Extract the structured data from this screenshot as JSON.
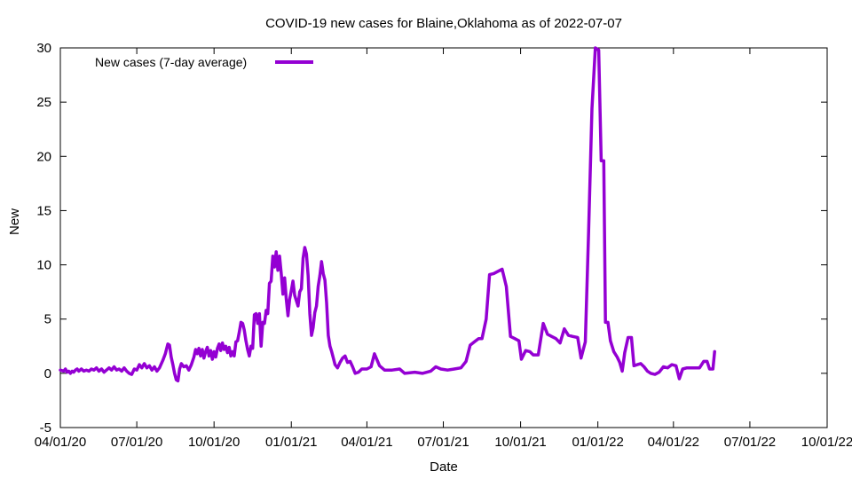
{
  "chart_data": {
    "type": "line",
    "title": "COVID-19 new cases for Blaine,Oklahoma as of 2022-07-07",
    "xlabel": "Date",
    "ylabel": "New",
    "ylim": [
      -5,
      30
    ],
    "yticks": [
      -5,
      0,
      5,
      10,
      15,
      20,
      25,
      30
    ],
    "xlim": [
      "2020-04-01",
      "2022-10-01"
    ],
    "xticks": [
      "2020-04-01",
      "2020-07-01",
      "2020-10-01",
      "2021-01-01",
      "2021-04-01",
      "2021-07-01",
      "2021-10-01",
      "2022-01-01",
      "2022-04-01",
      "2022-07-01",
      "2022-10-01"
    ],
    "xticklabels": [
      "04/01/20",
      "07/01/20",
      "10/01/20",
      "01/01/21",
      "04/01/21",
      "07/01/21",
      "10/01/21",
      "01/01/22",
      "04/01/22",
      "07/01/22",
      "10/01/22"
    ],
    "grid": false,
    "legend_position": "top-left",
    "series": [
      {
        "name": "New cases (7-day average)",
        "color": "#9400d3",
        "points": [
          [
            "2020-04-01",
            0.3
          ],
          [
            "2020-04-05",
            0.2
          ],
          [
            "2020-04-07",
            0.4
          ],
          [
            "2020-04-09",
            0.1
          ],
          [
            "2020-04-11",
            0.2
          ],
          [
            "2020-04-13",
            0.0
          ],
          [
            "2020-04-15",
            0.2
          ],
          [
            "2020-04-17",
            0.1
          ],
          [
            "2020-04-19",
            0.3
          ],
          [
            "2020-04-21",
            0.4
          ],
          [
            "2020-04-23",
            0.2
          ],
          [
            "2020-04-26",
            0.4
          ],
          [
            "2020-04-29",
            0.2
          ],
          [
            "2020-05-02",
            0.3
          ],
          [
            "2020-05-05",
            0.2
          ],
          [
            "2020-05-08",
            0.4
          ],
          [
            "2020-05-11",
            0.3
          ],
          [
            "2020-05-14",
            0.5
          ],
          [
            "2020-05-17",
            0.2
          ],
          [
            "2020-05-20",
            0.4
          ],
          [
            "2020-05-23",
            0.1
          ],
          [
            "2020-05-26",
            0.3
          ],
          [
            "2020-05-29",
            0.5
          ],
          [
            "2020-06-01",
            0.3
          ],
          [
            "2020-06-04",
            0.6
          ],
          [
            "2020-06-07",
            0.3
          ],
          [
            "2020-06-10",
            0.4
          ],
          [
            "2020-06-13",
            0.2
          ],
          [
            "2020-06-16",
            0.5
          ],
          [
            "2020-06-19",
            0.2
          ],
          [
            "2020-06-22",
            0.0
          ],
          [
            "2020-06-25",
            -0.1
          ],
          [
            "2020-06-28",
            0.4
          ],
          [
            "2020-07-01",
            0.3
          ],
          [
            "2020-07-04",
            0.8
          ],
          [
            "2020-07-07",
            0.5
          ],
          [
            "2020-07-10",
            0.9
          ],
          [
            "2020-07-13",
            0.5
          ],
          [
            "2020-07-16",
            0.7
          ],
          [
            "2020-07-19",
            0.3
          ],
          [
            "2020-07-22",
            0.6
          ],
          [
            "2020-07-25",
            0.2
          ],
          [
            "2020-07-28",
            0.5
          ],
          [
            "2020-08-01",
            1.2
          ],
          [
            "2020-08-04",
            1.8
          ],
          [
            "2020-08-07",
            2.7
          ],
          [
            "2020-08-09",
            2.6
          ],
          [
            "2020-08-11",
            1.5
          ],
          [
            "2020-08-13",
            0.8
          ],
          [
            "2020-08-15",
            0.0
          ],
          [
            "2020-08-17",
            -0.6
          ],
          [
            "2020-08-19",
            -0.7
          ],
          [
            "2020-08-21",
            0.4
          ],
          [
            "2020-08-23",
            0.9
          ],
          [
            "2020-08-26",
            0.6
          ],
          [
            "2020-08-29",
            0.7
          ],
          [
            "2020-09-01",
            0.3
          ],
          [
            "2020-09-04",
            0.8
          ],
          [
            "2020-09-07",
            1.5
          ],
          [
            "2020-09-09",
            2.2
          ],
          [
            "2020-09-11",
            1.8
          ],
          [
            "2020-09-13",
            2.3
          ],
          [
            "2020-09-15",
            1.6
          ],
          [
            "2020-09-17",
            2.2
          ],
          [
            "2020-09-19",
            1.4
          ],
          [
            "2020-09-21",
            2.0
          ],
          [
            "2020-09-23",
            2.4
          ],
          [
            "2020-09-25",
            1.6
          ],
          [
            "2020-09-27",
            2.1
          ],
          [
            "2020-09-29",
            1.3
          ],
          [
            "2020-10-01",
            2.0
          ],
          [
            "2020-10-03",
            1.5
          ],
          [
            "2020-10-05",
            2.3
          ],
          [
            "2020-10-07",
            2.7
          ],
          [
            "2020-10-09",
            2.1
          ],
          [
            "2020-10-11",
            2.8
          ],
          [
            "2020-10-13",
            2.2
          ],
          [
            "2020-10-15",
            2.5
          ],
          [
            "2020-10-17",
            1.9
          ],
          [
            "2020-10-19",
            2.4
          ],
          [
            "2020-10-21",
            1.6
          ],
          [
            "2020-10-23",
            2.0
          ],
          [
            "2020-10-25",
            1.6
          ],
          [
            "2020-10-27",
            2.9
          ],
          [
            "2020-10-29",
            3.0
          ],
          [
            "2020-10-31",
            3.8
          ],
          [
            "2020-11-02",
            4.7
          ],
          [
            "2020-11-04",
            4.6
          ],
          [
            "2020-11-06",
            4.0
          ],
          [
            "2020-11-08",
            3.0
          ],
          [
            "2020-11-10",
            2.2
          ],
          [
            "2020-11-12",
            1.6
          ],
          [
            "2020-11-14",
            2.5
          ],
          [
            "2020-11-16",
            2.3
          ],
          [
            "2020-11-18",
            5.4
          ],
          [
            "2020-11-20",
            5.5
          ],
          [
            "2020-11-22",
            4.6
          ],
          [
            "2020-11-24",
            5.5
          ],
          [
            "2020-11-26",
            2.5
          ],
          [
            "2020-11-28",
            4.7
          ],
          [
            "2020-11-30",
            4.6
          ],
          [
            "2020-12-02",
            5.8
          ],
          [
            "2020-12-04",
            5.5
          ],
          [
            "2020-12-06",
            8.3
          ],
          [
            "2020-12-08",
            8.5
          ],
          [
            "2020-12-10",
            10.8
          ],
          [
            "2020-12-12",
            9.8
          ],
          [
            "2020-12-14",
            11.2
          ],
          [
            "2020-12-16",
            9.5
          ],
          [
            "2020-12-18",
            10.8
          ],
          [
            "2020-12-20",
            9.2
          ],
          [
            "2020-12-22",
            7.3
          ],
          [
            "2020-12-24",
            8.8
          ],
          [
            "2020-12-26",
            6.8
          ],
          [
            "2020-12-28",
            5.3
          ],
          [
            "2020-12-30",
            6.8
          ],
          [
            "2021-01-01",
            7.6
          ],
          [
            "2021-01-03",
            8.5
          ],
          [
            "2021-01-05",
            7.2
          ],
          [
            "2021-01-07",
            6.7
          ],
          [
            "2021-01-09",
            6.2
          ],
          [
            "2021-01-11",
            7.5
          ],
          [
            "2021-01-13",
            7.8
          ],
          [
            "2021-01-15",
            10.6
          ],
          [
            "2021-01-17",
            11.6
          ],
          [
            "2021-01-19",
            11.0
          ],
          [
            "2021-01-21",
            9.0
          ],
          [
            "2021-01-23",
            5.5
          ],
          [
            "2021-01-25",
            3.5
          ],
          [
            "2021-01-27",
            4.2
          ],
          [
            "2021-01-29",
            5.6
          ],
          [
            "2021-01-31",
            6.2
          ],
          [
            "2021-02-02",
            8.0
          ],
          [
            "2021-02-04",
            9.0
          ],
          [
            "2021-02-06",
            10.3
          ],
          [
            "2021-02-08",
            9.2
          ],
          [
            "2021-02-10",
            8.6
          ],
          [
            "2021-02-12",
            6.5
          ],
          [
            "2021-02-14",
            3.5
          ],
          [
            "2021-02-16",
            2.5
          ],
          [
            "2021-02-18",
            2.0
          ],
          [
            "2021-02-20",
            1.4
          ],
          [
            "2021-02-22",
            0.8
          ],
          [
            "2021-02-25",
            0.5
          ],
          [
            "2021-02-28",
            1.0
          ],
          [
            "2021-03-03",
            1.4
          ],
          [
            "2021-03-06",
            1.6
          ],
          [
            "2021-03-09",
            1.0
          ],
          [
            "2021-03-12",
            1.1
          ],
          [
            "2021-03-15",
            0.6
          ],
          [
            "2021-03-18",
            0.0
          ],
          [
            "2021-03-22",
            0.1
          ],
          [
            "2021-03-26",
            0.4
          ],
          [
            "2021-04-01",
            0.4
          ],
          [
            "2021-04-06",
            0.6
          ],
          [
            "2021-04-10",
            1.8
          ],
          [
            "2021-04-16",
            0.7
          ],
          [
            "2021-04-22",
            0.3
          ],
          [
            "2021-05-01",
            0.3
          ],
          [
            "2021-05-10",
            0.4
          ],
          [
            "2021-05-16",
            0.0
          ],
          [
            "2021-05-28",
            0.1
          ],
          [
            "2021-06-06",
            0.0
          ],
          [
            "2021-06-16",
            0.2
          ],
          [
            "2021-06-22",
            0.6
          ],
          [
            "2021-06-28",
            0.4
          ],
          [
            "2021-07-06",
            0.3
          ],
          [
            "2021-07-14",
            0.4
          ],
          [
            "2021-07-22",
            0.5
          ],
          [
            "2021-07-28",
            1.1
          ],
          [
            "2021-08-02",
            2.6
          ],
          [
            "2021-08-07",
            2.9
          ],
          [
            "2021-08-12",
            3.2
          ],
          [
            "2021-08-16",
            3.2
          ],
          [
            "2021-08-21",
            5.0
          ],
          [
            "2021-08-25",
            9.1
          ],
          [
            "2021-08-30",
            9.2
          ],
          [
            "2021-09-04",
            9.4
          ],
          [
            "2021-09-09",
            9.6
          ],
          [
            "2021-09-14",
            8.0
          ],
          [
            "2021-09-19",
            3.4
          ],
          [
            "2021-09-24",
            3.2
          ],
          [
            "2021-09-29",
            3.0
          ],
          [
            "2021-10-02",
            1.3
          ],
          [
            "2021-10-07",
            2.1
          ],
          [
            "2021-10-12",
            2.0
          ],
          [
            "2021-10-16",
            1.7
          ],
          [
            "2021-10-22",
            1.7
          ],
          [
            "2021-10-28",
            4.6
          ],
          [
            "2021-11-02",
            3.6
          ],
          [
            "2021-11-07",
            3.4
          ],
          [
            "2021-11-12",
            3.2
          ],
          [
            "2021-11-17",
            2.8
          ],
          [
            "2021-11-22",
            4.1
          ],
          [
            "2021-11-27",
            3.5
          ],
          [
            "2021-12-02",
            3.4
          ],
          [
            "2021-12-08",
            3.3
          ],
          [
            "2021-12-12",
            1.4
          ],
          [
            "2021-12-17",
            2.9
          ],
          [
            "2021-12-21",
            13.0
          ],
          [
            "2021-12-25",
            24.4
          ],
          [
            "2021-12-29",
            30.0
          ],
          [
            "2022-01-02",
            29.8
          ],
          [
            "2022-01-05",
            19.6
          ],
          [
            "2022-01-08",
            19.6
          ],
          [
            "2022-01-10",
            4.7
          ],
          [
            "2022-01-13",
            4.7
          ],
          [
            "2022-01-16",
            3.0
          ],
          [
            "2022-01-20",
            2.0
          ],
          [
            "2022-01-24",
            1.5
          ],
          [
            "2022-01-27",
            1.0
          ],
          [
            "2022-01-30",
            0.2
          ],
          [
            "2022-02-02",
            1.9
          ],
          [
            "2022-02-06",
            3.3
          ],
          [
            "2022-02-10",
            3.3
          ],
          [
            "2022-02-13",
            0.7
          ],
          [
            "2022-02-17",
            0.8
          ],
          [
            "2022-02-21",
            0.9
          ],
          [
            "2022-02-25",
            0.6
          ],
          [
            "2022-03-01",
            0.2
          ],
          [
            "2022-03-05",
            0.0
          ],
          [
            "2022-03-10",
            -0.1
          ],
          [
            "2022-03-15",
            0.1
          ],
          [
            "2022-03-20",
            0.6
          ],
          [
            "2022-03-25",
            0.5
          ],
          [
            "2022-03-30",
            0.8
          ],
          [
            "2022-04-04",
            0.7
          ],
          [
            "2022-04-08",
            -0.5
          ],
          [
            "2022-04-12",
            0.4
          ],
          [
            "2022-04-17",
            0.5
          ],
          [
            "2022-04-22",
            0.5
          ],
          [
            "2022-04-27",
            0.5
          ],
          [
            "2022-05-02",
            0.5
          ],
          [
            "2022-05-07",
            1.1
          ],
          [
            "2022-05-11",
            1.1
          ],
          [
            "2022-05-14",
            0.4
          ],
          [
            "2022-05-18",
            0.4
          ],
          [
            "2022-05-20",
            2.0
          ]
        ]
      }
    ]
  }
}
